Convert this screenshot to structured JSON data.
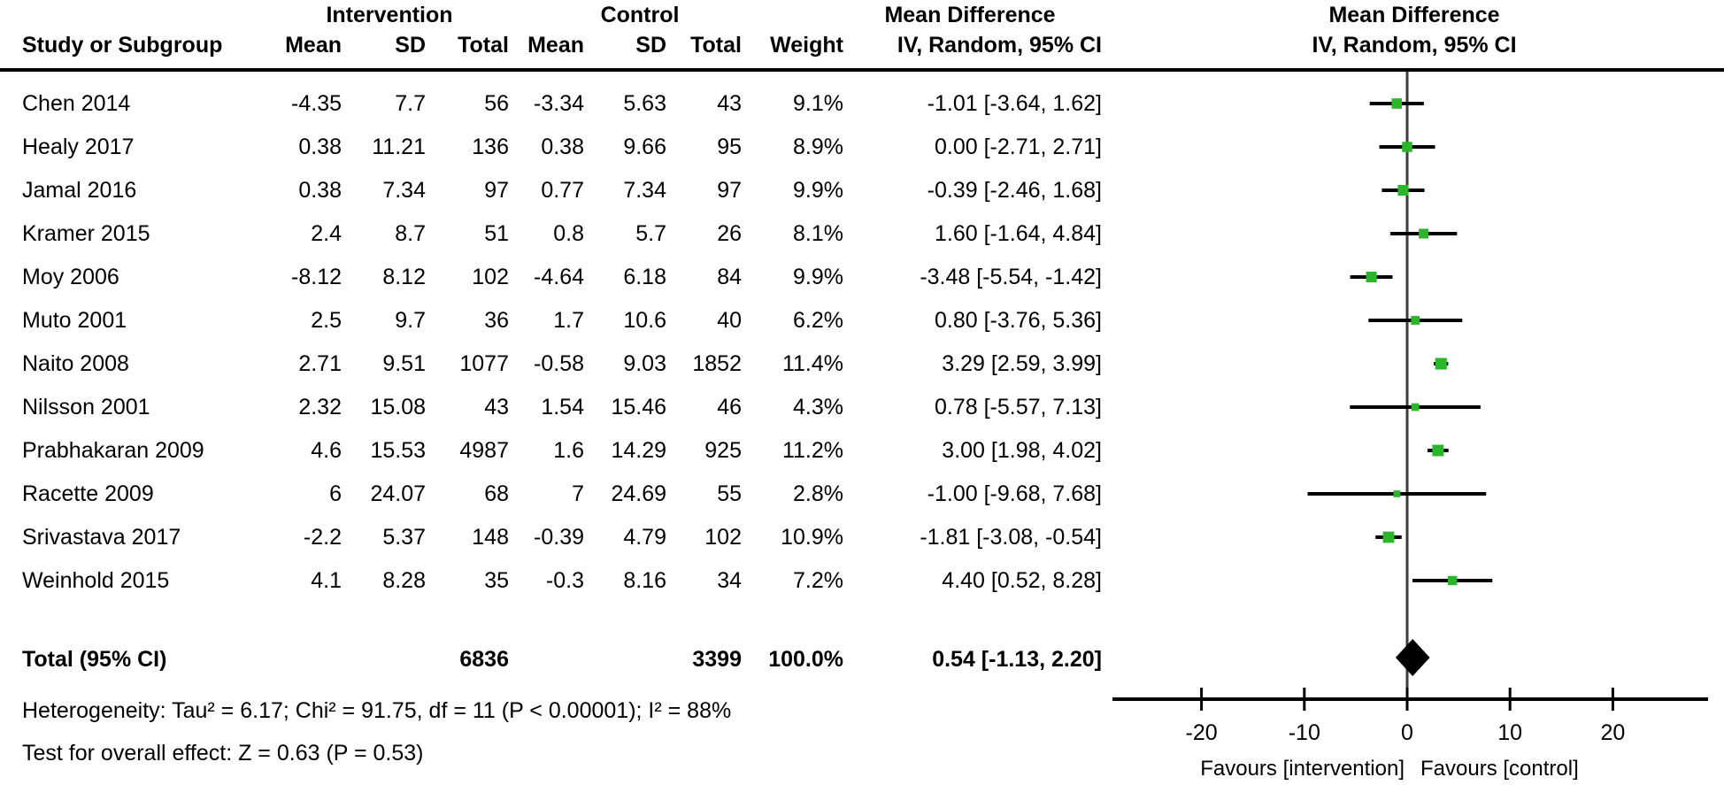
{
  "colors": {
    "marker_green": "#2BB52B",
    "ink": "#000000",
    "zero_line": "#3d3d3d"
  },
  "table": {
    "group_headers": {
      "intervention": "Intervention",
      "control": "Control",
      "md_text": "Mean Difference",
      "md_plot": "Mean Difference"
    },
    "column_headers": {
      "study": "Study or Subgroup",
      "mean_i": "Mean",
      "sd_i": "SD",
      "total_i": "Total",
      "mean_c": "Mean",
      "sd_c": "SD",
      "total_c": "Total",
      "weight": "Weight",
      "ci_text": "IV, Random, 95% CI",
      "ci_plot": "IV, Random, 95% CI"
    },
    "rows": [
      {
        "study": "Chen 2014",
        "mean_i": "-4.35",
        "sd_i": "7.7",
        "total_i": "56",
        "mean_c": "-3.34",
        "sd_c": "5.63",
        "total_c": "43",
        "weight": "9.1%",
        "ci": "-1.01 [-3.64, 1.62]"
      },
      {
        "study": "Healy 2017",
        "mean_i": "0.38",
        "sd_i": "11.21",
        "total_i": "136",
        "mean_c": "0.38",
        "sd_c": "9.66",
        "total_c": "95",
        "weight": "8.9%",
        "ci": "0.00 [-2.71, 2.71]"
      },
      {
        "study": "Jamal 2016",
        "mean_i": "0.38",
        "sd_i": "7.34",
        "total_i": "97",
        "mean_c": "0.77",
        "sd_c": "7.34",
        "total_c": "97",
        "weight": "9.9%",
        "ci": "-0.39 [-2.46, 1.68]"
      },
      {
        "study": "Kramer 2015",
        "mean_i": "2.4",
        "sd_i": "8.7",
        "total_i": "51",
        "mean_c": "0.8",
        "sd_c": "5.7",
        "total_c": "26",
        "weight": "8.1%",
        "ci": "1.60 [-1.64, 4.84]"
      },
      {
        "study": "Moy 2006",
        "mean_i": "-8.12",
        "sd_i": "8.12",
        "total_i": "102",
        "mean_c": "-4.64",
        "sd_c": "6.18",
        "total_c": "84",
        "weight": "9.9%",
        "ci": "-3.48 [-5.54, -1.42]"
      },
      {
        "study": "Muto 2001",
        "mean_i": "2.5",
        "sd_i": "9.7",
        "total_i": "36",
        "mean_c": "1.7",
        "sd_c": "10.6",
        "total_c": "40",
        "weight": "6.2%",
        "ci": "0.80 [-3.76, 5.36]"
      },
      {
        "study": "Naito 2008",
        "mean_i": "2.71",
        "sd_i": "9.51",
        "total_i": "1077",
        "mean_c": "-0.58",
        "sd_c": "9.03",
        "total_c": "1852",
        "weight": "11.4%",
        "ci": "3.29 [2.59, 3.99]"
      },
      {
        "study": "Nilsson 2001",
        "mean_i": "2.32",
        "sd_i": "15.08",
        "total_i": "43",
        "mean_c": "1.54",
        "sd_c": "15.46",
        "total_c": "46",
        "weight": "4.3%",
        "ci": "0.78 [-5.57, 7.13]"
      },
      {
        "study": "Prabhakaran 2009",
        "mean_i": "4.6",
        "sd_i": "15.53",
        "total_i": "4987",
        "mean_c": "1.6",
        "sd_c": "14.29",
        "total_c": "925",
        "weight": "11.2%",
        "ci": "3.00 [1.98, 4.02]"
      },
      {
        "study": "Racette 2009",
        "mean_i": "6",
        "sd_i": "24.07",
        "total_i": "68",
        "mean_c": "7",
        "sd_c": "24.69",
        "total_c": "55",
        "weight": "2.8%",
        "ci": "-1.00 [-9.68, 7.68]"
      },
      {
        "study": "Srivastava 2017",
        "mean_i": "-2.2",
        "sd_i": "5.37",
        "total_i": "148",
        "mean_c": "-0.39",
        "sd_c": "4.79",
        "total_c": "102",
        "weight": "10.9%",
        "ci": "-1.81 [-3.08, -0.54]"
      },
      {
        "study": "Weinhold 2015",
        "mean_i": "4.1",
        "sd_i": "8.28",
        "total_i": "35",
        "mean_c": "-0.3",
        "sd_c": "8.16",
        "total_c": "34",
        "weight": "7.2%",
        "ci": "4.40 [0.52, 8.28]"
      }
    ],
    "total_row": {
      "label": "Total (95% CI)",
      "total_i": "6836",
      "total_c": "3399",
      "weight": "100.0%",
      "ci": "0.54 [-1.13, 2.20]"
    },
    "footnotes": [
      "Heterogeneity: Tau² = 6.17; Chi² = 91.75, df = 11 (P < 0.00001); I² = 88%",
      "Test for overall effect: Z = 0.63 (P = 0.53)"
    ]
  },
  "chart_data": {
    "type": "forest",
    "effect_measure": "Mean Difference",
    "method_label": "IV, Random, 95% CI",
    "x_ticks": [
      -20,
      -10,
      0,
      10,
      20
    ],
    "xlim": [
      -28.7,
      29.3
    ],
    "axis_labels": {
      "left": "Favours [intervention]",
      "right": "Favours [control]"
    },
    "studies": [
      {
        "name": "Chen 2014",
        "md": -1.01,
        "ci_low": -3.64,
        "ci_high": 1.62,
        "weight_pct": 9.1
      },
      {
        "name": "Healy 2017",
        "md": 0.0,
        "ci_low": -2.71,
        "ci_high": 2.71,
        "weight_pct": 8.9
      },
      {
        "name": "Jamal 2016",
        "md": -0.39,
        "ci_low": -2.46,
        "ci_high": 1.68,
        "weight_pct": 9.9
      },
      {
        "name": "Kramer 2015",
        "md": 1.6,
        "ci_low": -1.64,
        "ci_high": 4.84,
        "weight_pct": 8.1
      },
      {
        "name": "Moy 2006",
        "md": -3.48,
        "ci_low": -5.54,
        "ci_high": -1.42,
        "weight_pct": 9.9
      },
      {
        "name": "Muto 2001",
        "md": 0.8,
        "ci_low": -3.76,
        "ci_high": 5.36,
        "weight_pct": 6.2
      },
      {
        "name": "Naito 2008",
        "md": 3.29,
        "ci_low": 2.59,
        "ci_high": 3.99,
        "weight_pct": 11.4
      },
      {
        "name": "Nilsson 2001",
        "md": 0.78,
        "ci_low": -5.57,
        "ci_high": 7.13,
        "weight_pct": 4.3
      },
      {
        "name": "Prabhakaran 2009",
        "md": 3.0,
        "ci_low": 1.98,
        "ci_high": 4.02,
        "weight_pct": 11.2
      },
      {
        "name": "Racette 2009",
        "md": -1.0,
        "ci_low": -9.68,
        "ci_high": 7.68,
        "weight_pct": 2.8
      },
      {
        "name": "Srivastava 2017",
        "md": -1.81,
        "ci_low": -3.08,
        "ci_high": -0.54,
        "weight_pct": 10.9
      },
      {
        "name": "Weinhold 2015",
        "md": 4.4,
        "ci_low": 0.52,
        "ci_high": 8.28,
        "weight_pct": 7.2
      }
    ],
    "pooled": {
      "label": "Total (95% CI)",
      "md": 0.54,
      "ci_low": -1.13,
      "ci_high": 2.2
    }
  }
}
